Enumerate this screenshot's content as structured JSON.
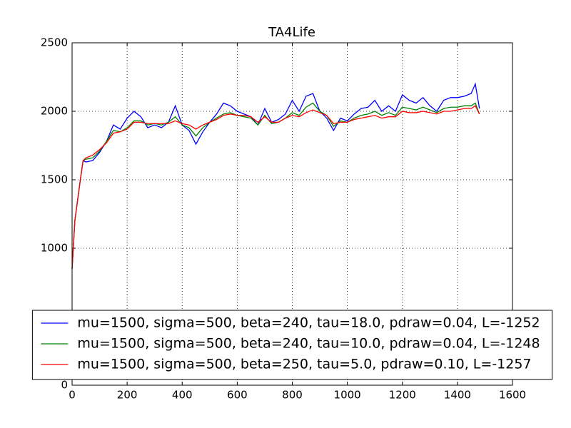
{
  "chart_data": {
    "type": "line",
    "title": "TA4Life",
    "x": [
      0,
      10,
      20,
      30,
      40,
      50,
      75,
      100,
      125,
      150,
      175,
      200,
      225,
      250,
      275,
      300,
      325,
      350,
      375,
      400,
      425,
      450,
      475,
      500,
      525,
      550,
      575,
      600,
      625,
      650,
      675,
      700,
      725,
      750,
      775,
      800,
      825,
      850,
      875,
      900,
      925,
      950,
      975,
      1000,
      1025,
      1050,
      1075,
      1100,
      1125,
      1150,
      1175,
      1200,
      1225,
      1250,
      1275,
      1300,
      1325,
      1350,
      1375,
      1400,
      1425,
      1450,
      1465,
      1480
    ],
    "series": [
      {
        "name": "mu=1500, sigma=500, beta=240, tau=18.0, pdraw=0.04, L=-1252",
        "color": "#0000ff",
        "values": [
          850,
          1200,
          1350,
          1500,
          1640,
          1630,
          1640,
          1700,
          1780,
          1900,
          1870,
          1950,
          2000,
          1960,
          1880,
          1900,
          1880,
          1920,
          2040,
          1900,
          1860,
          1760,
          1850,
          1920,
          1980,
          2060,
          2040,
          2000,
          1980,
          1960,
          1900,
          2020,
          1920,
          1940,
          1980,
          2080,
          2000,
          2110,
          2130,
          2000,
          1950,
          1860,
          1950,
          1930,
          1980,
          2020,
          2030,
          2080,
          2000,
          2040,
          2000,
          2120,
          2080,
          2060,
          2100,
          2040,
          2000,
          2080,
          2100,
          2100,
          2110,
          2130,
          2200,
          2020
        ]
      },
      {
        "name": "mu=1500, sigma=500, beta=240, tau=10.0, pdraw=0.04, L=-1248",
        "color": "#008000",
        "values": [
          850,
          1200,
          1350,
          1500,
          1640,
          1650,
          1660,
          1710,
          1780,
          1860,
          1850,
          1880,
          1930,
          1930,
          1900,
          1910,
          1900,
          1920,
          1960,
          1900,
          1880,
          1820,
          1880,
          1920,
          1950,
          1980,
          1990,
          1970,
          1960,
          1950,
          1900,
          1970,
          1910,
          1920,
          1950,
          1990,
          1970,
          2030,
          2060,
          2000,
          1970,
          1890,
          1930,
          1920,
          1950,
          1970,
          1980,
          2000,
          1970,
          1990,
          1970,
          2030,
          2020,
          2010,
          2030,
          2010,
          1990,
          2020,
          2030,
          2030,
          2040,
          2040,
          2060,
          1980
        ]
      },
      {
        "name": "mu=1500, sigma=500, beta=250, tau=5.0, pdraw=0.10, L=-1257",
        "color": "#ff0000",
        "values": [
          850,
          1200,
          1350,
          1500,
          1640,
          1660,
          1680,
          1720,
          1770,
          1840,
          1850,
          1870,
          1920,
          1920,
          1910,
          1910,
          1910,
          1910,
          1930,
          1910,
          1900,
          1870,
          1900,
          1920,
          1940,
          1970,
          1980,
          1970,
          1970,
          1960,
          1920,
          1960,
          1920,
          1920,
          1950,
          1970,
          1960,
          1990,
          2010,
          1990,
          1970,
          1910,
          1920,
          1920,
          1940,
          1950,
          1960,
          1970,
          1950,
          1960,
          1960,
          2000,
          1990,
          1990,
          2000,
          1990,
          1980,
          2000,
          2000,
          2010,
          2020,
          2020,
          2040,
          1980
        ]
      }
    ],
    "xlim": [
      0,
      1600
    ],
    "xticks": [
      0,
      200,
      400,
      600,
      800,
      1000,
      1200,
      1400,
      1600
    ],
    "ylim": [
      0,
      2500
    ],
    "yticks": [
      0,
      500,
      1000,
      1500,
      2000,
      2500
    ],
    "grid": true,
    "legend": "lower center"
  }
}
